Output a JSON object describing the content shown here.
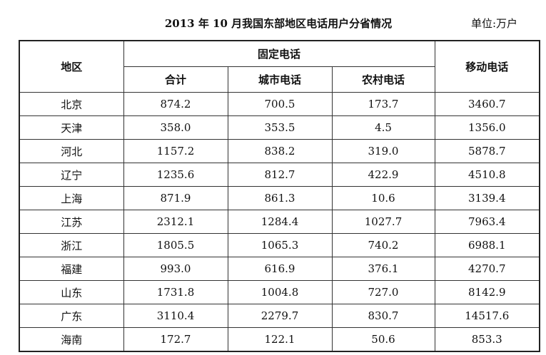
{
  "title": "2013 年 10 月我国东部地区电话用户分省情况",
  "unit": "单位:万户",
  "headers": {
    "region": "地区",
    "fixed": "固定电话",
    "total": "合计",
    "urban": "城市电话",
    "rural": "农村电话",
    "mobile": "移动电话"
  },
  "rows": [
    [
      "北京",
      "874.2",
      "700.5",
      "173.7",
      "3460.7"
    ],
    [
      "天津",
      "358.0",
      "353.5",
      "4.5",
      "1356.0"
    ],
    [
      "河北",
      "1157.2",
      "838.2",
      "319.0",
      "5878.7"
    ],
    [
      "辽宁",
      "1235.6",
      "812.7",
      "422.9",
      "4510.8"
    ],
    [
      "上海",
      "871.9",
      "861.3",
      "10.6",
      "3139.4"
    ],
    [
      "江苏",
      "2312.1",
      "1284.4",
      "1027.7",
      "7963.4"
    ],
    [
      "浙江",
      "1805.5",
      "1065.3",
      "740.2",
      "6988.1"
    ],
    [
      "福建",
      "993.0",
      "616.9",
      "376.1",
      "4270.7"
    ],
    [
      "山东",
      "1731.8",
      "1004.8",
      "727.0",
      "8142.9"
    ],
    [
      "广东",
      "3110.4",
      "2279.7",
      "830.7",
      "14517.6"
    ],
    [
      "海南",
      "172.7",
      "122.1",
      "50.6",
      "853.3"
    ]
  ]
}
